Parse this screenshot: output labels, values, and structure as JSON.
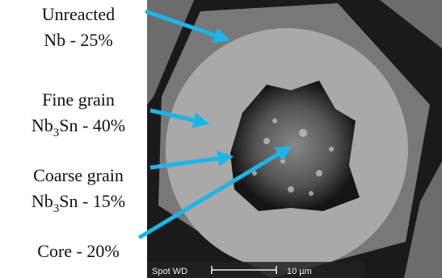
{
  "labels": [
    {
      "lines": [
        {
          "text": "Unreacted"
        },
        {
          "text": "Nb - 25%"
        }
      ]
    },
    {
      "lines": [
        {
          "text": "Fine grain"
        },
        {
          "prefix": "Nb",
          "subscript": "3",
          "suffix": "Sn - 40%"
        }
      ]
    },
    {
      "lines": [
        {
          "text": "Coarse grain"
        },
        {
          "prefix": "Nb",
          "subscript": "3",
          "suffix": "Sn - 15%"
        }
      ]
    },
    {
      "lines": [
        {
          "text": "Core - 20%"
        }
      ]
    }
  ],
  "scale_bar": {
    "info": "Spot WD",
    "length": "10 µm"
  }
}
